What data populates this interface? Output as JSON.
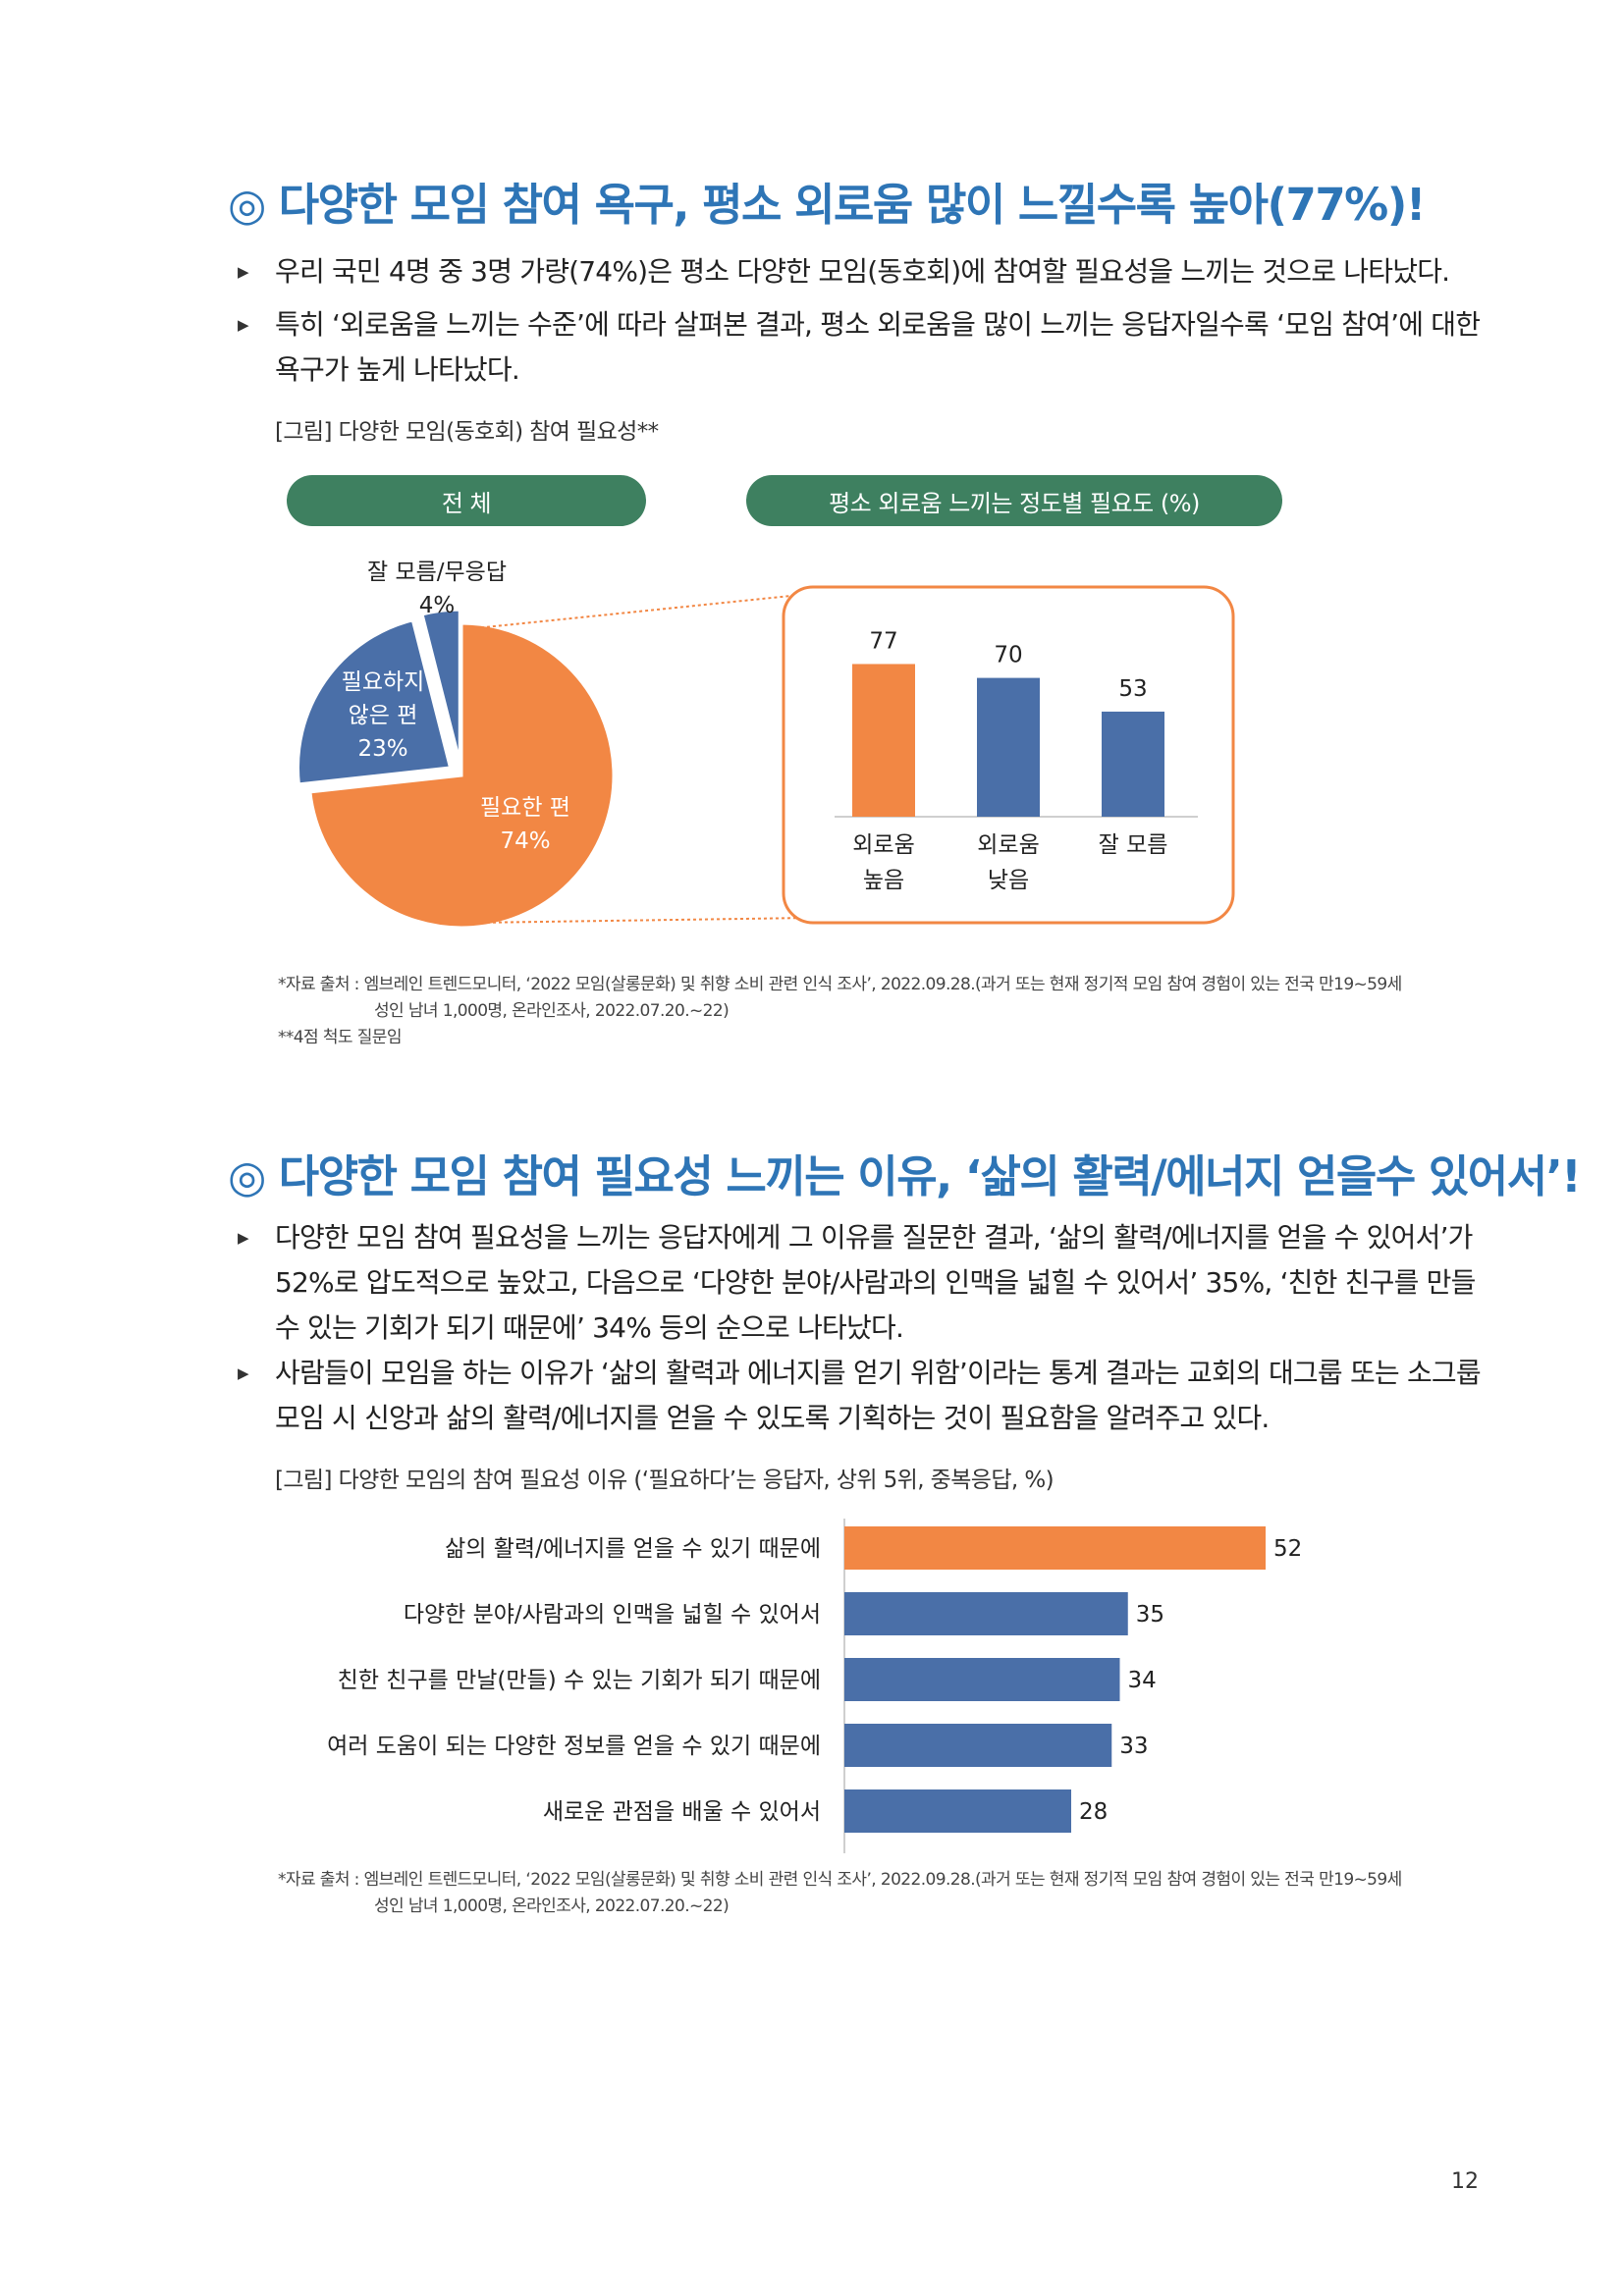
{
  "section1": {
    "mark": "◎",
    "title": "다양한 모임 참여 욕구, 평소 외로움 많이 느낄수록 높아(77%)!",
    "bullets": [
      "우리 국민 4명 중 3명 가량(74%)은 평소 다양한 모임(동호회)에 참여할 필요성을 느끼는 것으로 나타났다.",
      "특히 ‘외로움을 느끼는 수준’에 따라 살펴본 결과, 평소 외로움을 많이 느끼는 응답자일수록 ‘모임 참여’에 대한 욕구가 높게 나타났다."
    ],
    "figure_caption": "[그림] 다양한 모임(동호회) 참여 필요성**",
    "pill_total": "전 체",
    "pill_by_level": "평소 외로움 느끼는 정도별 필요도 (%)",
    "source_lines": [
      "*자료 출처 : 엠브레인 트렌드모니터, ‘2022 모임(살롱문화) 및 취향 소비 관련 인식 조사’, 2022.09.28.(과거 또는 현재 정기적 모임 참여 경험이 있는 전국 만19~59세",
      "성인 남녀 1,000명, 온라인조사, 2022.07.20.~22)",
      "**4점 척도 질문임"
    ]
  },
  "section2": {
    "mark": "◎",
    "title": "다양한 모임 참여 필요성 느끼는 이유, ‘삶의 활력/에너지 얻을수 있어서’!",
    "bullets": [
      "다양한 모임 참여 필요성을 느끼는 응답자에게 그 이유를 질문한 결과, ‘삶의 활력/에너지를 얻을 수 있어서’가 52%로 압도적으로 높았고, 다음으로 ‘다양한 분야/사람과의 인맥을 넓힐 수 있어서’ 35%, ‘친한 친구를 만들 수 있는 기회가 되기 때문에’ 34% 등의 순으로 나타났다.",
      "사람들이 모임을 하는 이유가 ‘삶의 활력과 에너지를 얻기 위함’이라는 통계 결과는 교회의 대그룹 또는 소그룹 모임 시 신앙과 삶의 활력/에너지를 얻을 수 있도록 기획하는 것이 필요함을 알려주고 있다."
    ],
    "figure_caption": "[그림] 다양한 모임의 참여 필요성 이유 (‘필요하다’는 응답자, 상위 5위, 중복응답, %)",
    "source_lines": [
      "*자료 출처 : 엠브레인 트렌드모니터, ‘2022 모임(살롱문화) 및 취향 소비 관련 인식 조사’, 2022.09.28.(과거 또는 현재 정기적 모임 참여 경험이 있는 전국 만19~59세",
      "성인 남녀 1,000명, 온라인조사, 2022.07.20.~22)"
    ]
  },
  "colors": {
    "orange": "#f28744",
    "blue": "#4a6fa8",
    "green": "#3e8060",
    "heading": "#2e75b6"
  },
  "page_number": "12",
  "chart_data": [
    {
      "type": "pie",
      "labels": [
        "필요한 편",
        "필요하지 않은 편",
        "잘 모름/무응답"
      ],
      "label_lines": [
        [
          "필요한 편"
        ],
        [
          "필요하지",
          "않은 편"
        ],
        [
          "잘 모름/무응답"
        ]
      ],
      "values": [
        74,
        23,
        4
      ],
      "value_labels": [
        "74%",
        "23%",
        "4%"
      ],
      "colors": [
        "#f28744",
        "#4a6fa8",
        "#4a6fa8"
      ]
    },
    {
      "type": "bar",
      "categories": [
        "외로움 높음",
        "외로움 낮음",
        "잘 모름"
      ],
      "category_lines": [
        [
          "외로움",
          "높음"
        ],
        [
          "외로움",
          "낮음"
        ],
        [
          "잘 모름"
        ]
      ],
      "values": [
        77,
        70,
        53
      ],
      "colors": [
        "#f28744",
        "#4a6fa8",
        "#4a6fa8"
      ],
      "ylim": [
        0,
        100
      ]
    },
    {
      "type": "bar",
      "orientation": "horizontal",
      "categories": [
        "삶의 활력/에너지를 얻을 수 있기 때문에",
        "다양한 분야/사람과의 인맥을 넓힐 수 있어서",
        "친한 친구를 만날(만들) 수 있는 기회가 되기 때문에",
        "여러 도움이 되는 다양한 정보를 얻을 수 있기 때문에",
        "새로운 관점을 배울 수 있어서"
      ],
      "values": [
        52,
        35,
        34,
        33,
        28
      ],
      "colors": [
        "#f28744",
        "#4a6fa8",
        "#4a6fa8",
        "#4a6fa8",
        "#4a6fa8"
      ],
      "xlim": [
        0,
        100
      ]
    }
  ]
}
